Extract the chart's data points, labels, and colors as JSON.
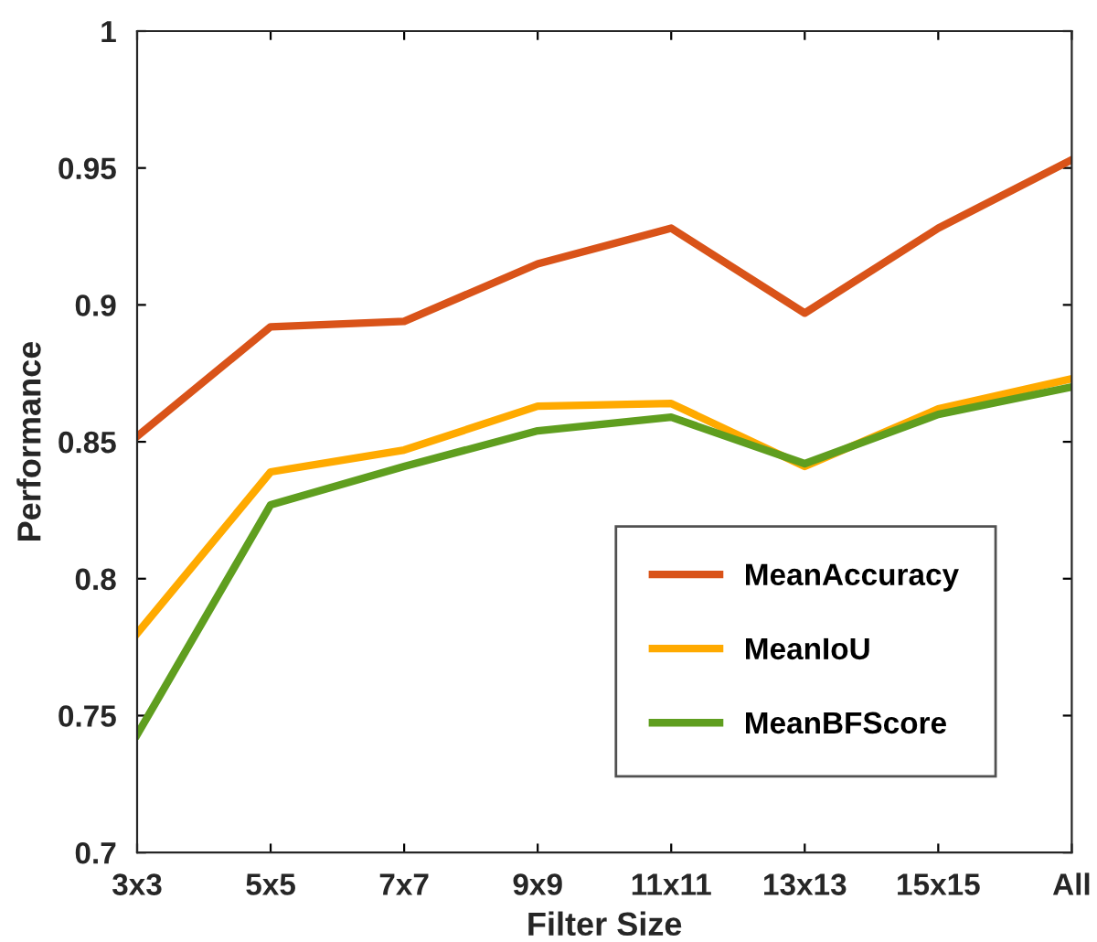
{
  "chart_data": {
    "type": "line",
    "xlabel": "Filter Size",
    "ylabel": "Performance",
    "categories": [
      "3x3",
      "5x5",
      "7x7",
      "9x9",
      "11x11",
      "13x13",
      "15x15",
      "All"
    ],
    "series": [
      {
        "name": "MeanAccuracy",
        "color": "#d95319",
        "values": [
          0.852,
          0.892,
          0.894,
          0.915,
          0.928,
          0.897,
          0.928,
          0.953
        ]
      },
      {
        "name": "MeanIoU",
        "color": "#ffaa00",
        "values": [
          0.78,
          0.839,
          0.847,
          0.863,
          0.864,
          0.841,
          0.862,
          0.873
        ]
      },
      {
        "name": "MeanBFScore",
        "color": "#5f9e1f",
        "values": [
          0.743,
          0.827,
          0.841,
          0.854,
          0.859,
          0.842,
          0.86,
          0.87
        ]
      }
    ],
    "ylim": [
      0.7,
      1
    ],
    "yticks": [
      0.7,
      0.75,
      0.8,
      0.85,
      0.9,
      0.95,
      1
    ],
    "grid": false,
    "legend": "bottom right",
    "marker": "none",
    "line_style": "solid"
  }
}
